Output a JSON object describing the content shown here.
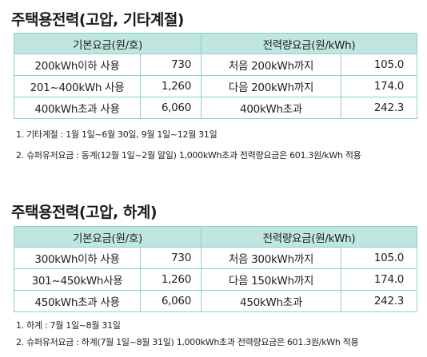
{
  "section1": {
    "title": "주택용전력(고압, 기타계절)",
    "header_basic": "기본요금(원/호)",
    "header_energy": "전력량요금(원/kWh)",
    "rows": [
      {
        "basic_label": "200kWh이하 사용",
        "basic_value": "730",
        "energy_label": "처음 200kWh까지",
        "energy_value": "105.0"
      },
      {
        "basic_label": "201~400kWh 사용",
        "basic_value": "1,260",
        "energy_label": "다음 200kWh까지",
        "energy_value": "174.0"
      },
      {
        "basic_label": "400kWh초과 사용",
        "basic_value": "6,060",
        "energy_label": "400kWh초과",
        "energy_value": "242.3"
      }
    ],
    "notes": [
      "1. 기타계절 : 1월 1일~6월 30일, 9월 1일~12월 31일",
      "2. 슈퍼유저요금 : 동계(12월 1일~2월 말일) 1,000kWh초과 전력량요금은 601.3원/kWh 적용"
    ]
  },
  "section2": {
    "title": "주택용전력(고압, 하계)",
    "header_basic": "기본요금(원/호)",
    "header_energy": "전력량요금(원/kWh)",
    "rows": [
      {
        "basic_label": "300kWh이하 사용",
        "basic_value": "730",
        "energy_label": "처음 300kWh까지",
        "energy_value": "105.0"
      },
      {
        "basic_label": "301~450kWh사용",
        "basic_value": "1,260",
        "energy_label": "다음 150kWh까지",
        "energy_value": "174.0"
      },
      {
        "basic_label": "450kWh초과 사용",
        "basic_value": "6,060",
        "energy_label": "450kWh초과",
        "energy_value": "242.3"
      }
    ],
    "notes": [
      "1. 하계 : 7월 1일~8월 31일",
      "2. 슈퍼유저요금 : 하계(7월 1일~8월 31일) 1,000kWh초과 전력량요금은 601.3원/kWh 적용"
    ]
  },
  "colors": {
    "header_fill": "#bfe6df",
    "border": "#8fd0c6"
  }
}
